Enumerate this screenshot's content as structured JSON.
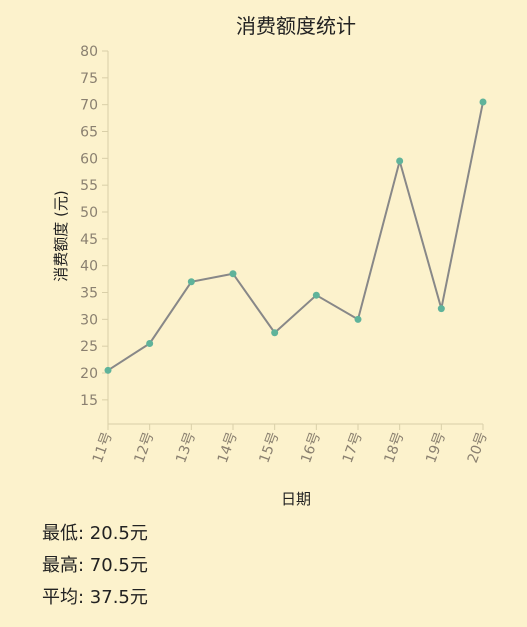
{
  "chart_data": {
    "type": "line",
    "title": "消费额度统计",
    "xlabel": "日期",
    "ylabel": "消费额度 (元)",
    "categories": [
      "11号",
      "12号",
      "13号",
      "14号",
      "15号",
      "16号",
      "17号",
      "18号",
      "19号",
      "20号"
    ],
    "values": [
      20.5,
      25.5,
      37,
      38.5,
      27.5,
      34.5,
      30,
      59.5,
      32,
      70.5
    ],
    "ylim": [
      10.5,
      80
    ],
    "yticks": [
      15,
      20,
      25,
      30,
      35,
      40,
      45,
      50,
      55,
      60,
      65,
      70,
      75,
      80
    ],
    "grid": false,
    "colors": {
      "line": "#888888",
      "point": "#5fb39a",
      "background": "#fcf2cc"
    }
  },
  "stats": {
    "min": "最低: 20.5元",
    "max": "最高: 70.5元",
    "avg": "平均: 37.5元"
  }
}
